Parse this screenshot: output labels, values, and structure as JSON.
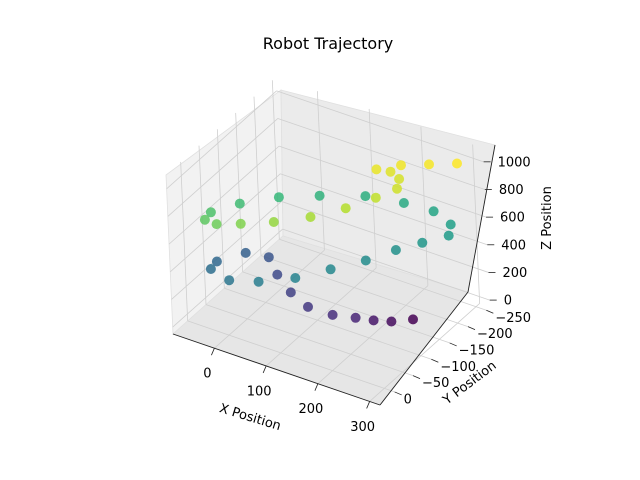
{
  "chart_data": {
    "type": "scatter",
    "projection": "3d",
    "title": "Robot Trajectory",
    "xlabel": "X Position",
    "ylabel": "Y Position",
    "zlabel": "Z Position",
    "xlim": [
      -80,
      320
    ],
    "ylim": [
      -260,
      40
    ],
    "zlim": [
      -50,
      1100
    ],
    "x_ticks": [
      0,
      100,
      200,
      300
    ],
    "y_ticks": [
      0,
      -50,
      -100,
      -150,
      -200,
      -250
    ],
    "z_ticks": [
      0,
      200,
      400,
      600,
      800,
      1000
    ],
    "grid": true,
    "colormap": "viridis",
    "color_by": "z",
    "points": [
      {
        "x": 250,
        "y": -150,
        "z": 30
      },
      {
        "x": 230,
        "y": -120,
        "z": 60
      },
      {
        "x": 210,
        "y": -100,
        "z": 90
      },
      {
        "x": 190,
        "y": -80,
        "z": 130
      },
      {
        "x": 160,
        "y": -60,
        "z": 160
      },
      {
        "x": 120,
        "y": -50,
        "z": 190
      },
      {
        "x": 80,
        "y": -60,
        "z": 220
      },
      {
        "x": 40,
        "y": -80,
        "z": 250
      },
      {
        "x": 10,
        "y": -100,
        "z": 290
      },
      {
        "x": -20,
        "y": -80,
        "z": 330
      },
      {
        "x": -40,
        "y": -30,
        "z": 360
      },
      {
        "x": -30,
        "y": 0,
        "z": 390
      },
      {
        "x": 20,
        "y": 20,
        "z": 420
      },
      {
        "x": 70,
        "y": 10,
        "z": 450
      },
      {
        "x": 120,
        "y": -20,
        "z": 470
      },
      {
        "x": 160,
        "y": -60,
        "z": 490
      },
      {
        "x": 200,
        "y": -100,
        "z": 510
      },
      {
        "x": 230,
        "y": -140,
        "z": 530
      },
      {
        "x": 260,
        "y": -170,
        "z": 550
      },
      {
        "x": 290,
        "y": -200,
        "z": 570
      },
      {
        "x": 280,
        "y": -220,
        "z": 590
      },
      {
        "x": 240,
        "y": -230,
        "z": 610
      },
      {
        "x": 190,
        "y": -220,
        "z": 630
      },
      {
        "x": 130,
        "y": -200,
        "z": 650
      },
      {
        "x": 70,
        "y": -160,
        "z": 670
      },
      {
        "x": 20,
        "y": -120,
        "z": 690
      },
      {
        "x": -20,
        "y": -70,
        "z": 710
      },
      {
        "x": -40,
        "y": -20,
        "z": 740
      },
      {
        "x": -30,
        "y": 10,
        "z": 770
      },
      {
        "x": 0,
        "y": 20,
        "z": 800
      },
      {
        "x": 40,
        "y": 10,
        "z": 830
      },
      {
        "x": 90,
        "y": -10,
        "z": 860
      },
      {
        "x": 140,
        "y": -40,
        "z": 890
      },
      {
        "x": 180,
        "y": -80,
        "z": 910
      },
      {
        "x": 210,
        "y": -120,
        "z": 930
      },
      {
        "x": 230,
        "y": -150,
        "z": 950
      },
      {
        "x": 220,
        "y": -170,
        "z": 960
      },
      {
        "x": 200,
        "y": -175,
        "z": 975
      },
      {
        "x": 180,
        "y": -165,
        "z": 990
      },
      {
        "x": 210,
        "y": -190,
        "z": 1000
      },
      {
        "x": 250,
        "y": -210,
        "z": 1010
      },
      {
        "x": 290,
        "y": -230,
        "z": 1020
      }
    ]
  }
}
